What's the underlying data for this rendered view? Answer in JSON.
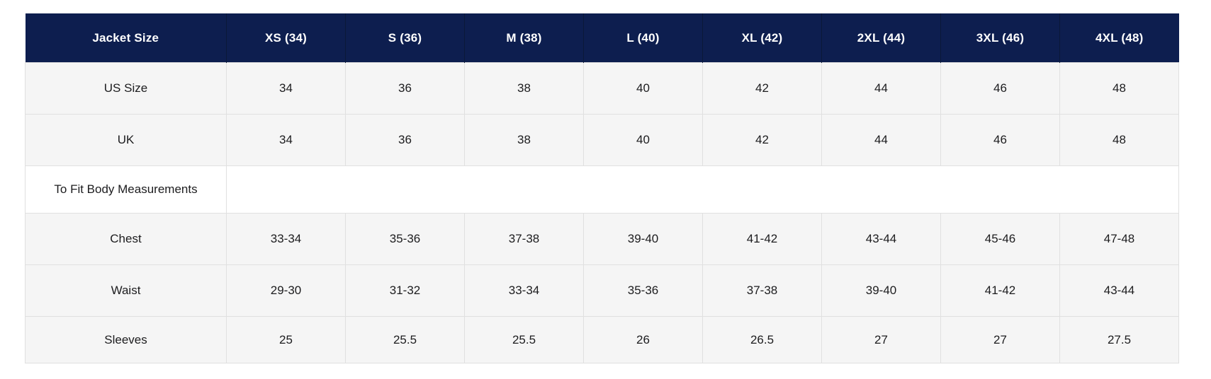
{
  "table": {
    "header": {
      "label": "Jacket Size",
      "columns": [
        "XS (34)",
        "S (36)",
        "M (38)",
        "L (40)",
        "XL (42)",
        "2XL (44)",
        "3XL (46)",
        "4XL (48)"
      ]
    },
    "rows": [
      {
        "label": "US Size",
        "values": [
          "34",
          "36",
          "38",
          "40",
          "42",
          "44",
          "46",
          "48"
        ]
      },
      {
        "label": "UK",
        "values": [
          "34",
          "36",
          "38",
          "40",
          "42",
          "44",
          "46",
          "48"
        ]
      },
      {
        "label": "To Fit Body Measurements",
        "values": []
      },
      {
        "label": "Chest",
        "values": [
          "33-34",
          "35-36",
          "37-38",
          "39-40",
          "41-42",
          "43-44",
          "45-46",
          "47-48"
        ]
      },
      {
        "label": "Waist",
        "values": [
          "29-30",
          "31-32",
          "33-34",
          "35-36",
          "37-38",
          "39-40",
          "41-42",
          "43-44"
        ]
      },
      {
        "label": "Sleeves",
        "values": [
          "25",
          "25.5",
          "25.5",
          "26",
          "26.5",
          "27",
          "27",
          "27.5"
        ]
      }
    ],
    "colors": {
      "header_bg": "#0d1e4f",
      "header_text": "#ffffff",
      "row_bg": "#f5f5f5",
      "section_row_bg": "#ffffff",
      "border": "#e0e0e0",
      "body_text": "#1c1c1e"
    }
  }
}
